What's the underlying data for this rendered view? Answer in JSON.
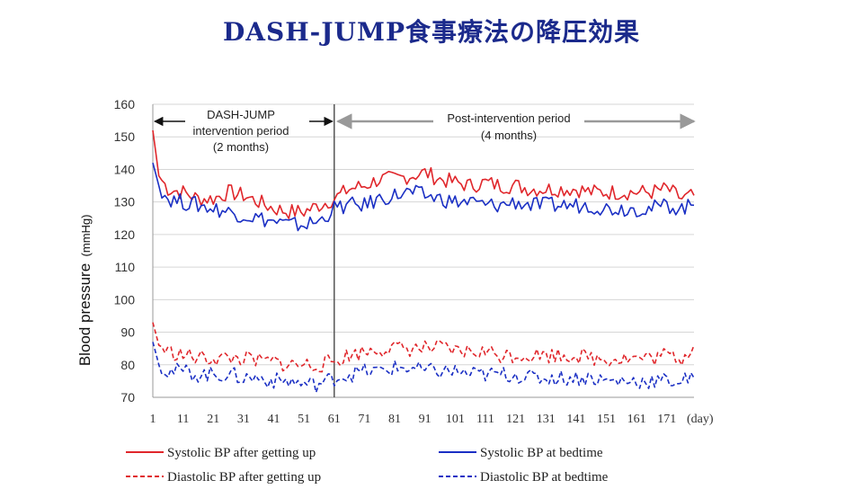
{
  "title": "DASH-JUMP食事療法の降圧効果",
  "chart_data": {
    "type": "line",
    "ylabel": "Blood pressure",
    "ylabel_unit": "(mmHg)",
    "xunit": "(day)",
    "ylim": [
      70,
      160
    ],
    "yticks": [
      70,
      80,
      90,
      100,
      110,
      120,
      130,
      140,
      150,
      160
    ],
    "xlim": [
      1,
      180
    ],
    "xticks": [
      1,
      11,
      21,
      31,
      41,
      51,
      61,
      71,
      81,
      91,
      101,
      111,
      121,
      131,
      141,
      151,
      161,
      171
    ],
    "grid": "horizontal",
    "annotations": [
      {
        "lines": [
          "DASH-JUMP",
          "intervention period",
          "(2 months)"
        ],
        "from_day": 1,
        "to_day": 61
      },
      {
        "lines": [
          "Post-intervention period",
          "(4 months)"
        ],
        "from_day": 61,
        "to_day": 180
      }
    ],
    "divider_day": 61,
    "series": [
      {
        "name": "Systolic BP after getting up",
        "color": "#e0262b",
        "style": "solid",
        "x": [
          1,
          3,
          6,
          11,
          16,
          21,
          26,
          31,
          36,
          41,
          46,
          51,
          56,
          61,
          66,
          71,
          76,
          81,
          86,
          91,
          96,
          101,
          106,
          111,
          116,
          121,
          126,
          131,
          136,
          141,
          146,
          151,
          156,
          161,
          166,
          171,
          176,
          180
        ],
        "values": [
          152,
          138,
          134,
          133,
          131,
          131,
          133,
          132,
          130,
          128,
          127,
          127,
          129,
          131,
          134,
          135,
          137,
          137,
          138,
          139,
          137,
          136,
          135,
          136,
          135,
          135,
          134,
          134,
          134,
          134,
          133,
          133,
          133,
          133,
          133,
          134,
          131,
          132
        ]
      },
      {
        "name": "Systolic BP at bedtime",
        "color": "#1a2fc4",
        "style": "solid",
        "x": [
          1,
          3,
          6,
          11,
          16,
          21,
          26,
          31,
          36,
          41,
          46,
          51,
          56,
          61,
          66,
          71,
          76,
          81,
          86,
          91,
          96,
          101,
          106,
          111,
          116,
          121,
          126,
          131,
          136,
          141,
          146,
          151,
          156,
          161,
          166,
          171,
          176,
          180
        ],
        "values": [
          142,
          135,
          131,
          130,
          129,
          128,
          127,
          126,
          125,
          124,
          123,
          123,
          124,
          128,
          129,
          129,
          131,
          132,
          133,
          132,
          131,
          130,
          130,
          129,
          129,
          130,
          129,
          129,
          129,
          129,
          129,
          128,
          128,
          128,
          128,
          129,
          128,
          129
        ]
      },
      {
        "name": "Diastolic BP after getting up",
        "color": "#e0262b",
        "style": "dashed",
        "x": [
          1,
          3,
          6,
          11,
          16,
          21,
          26,
          31,
          36,
          41,
          46,
          51,
          56,
          61,
          66,
          71,
          76,
          81,
          86,
          91,
          96,
          101,
          106,
          111,
          116,
          121,
          126,
          131,
          136,
          141,
          146,
          151,
          156,
          161,
          166,
          171,
          176,
          180
        ],
        "values": [
          93,
          86,
          84,
          83,
          82,
          82,
          82,
          82,
          81,
          81,
          80,
          80,
          80,
          81,
          83,
          84,
          85,
          85,
          85,
          85,
          85,
          84,
          84,
          84,
          83,
          83,
          83,
          83,
          83,
          83,
          82,
          82,
          82,
          82,
          82,
          83,
          82,
          86
        ]
      },
      {
        "name": "Diastolic BP at bedtime",
        "color": "#1a2fc4",
        "style": "dashed",
        "x": [
          1,
          3,
          6,
          11,
          16,
          21,
          26,
          31,
          36,
          41,
          46,
          51,
          56,
          61,
          66,
          71,
          76,
          81,
          86,
          91,
          96,
          101,
          106,
          111,
          116,
          121,
          126,
          131,
          136,
          141,
          146,
          151,
          156,
          161,
          166,
          171,
          176,
          180
        ],
        "values": [
          87,
          80,
          78,
          78,
          77,
          77,
          77,
          76,
          76,
          75,
          75,
          74,
          74,
          76,
          77,
          78,
          78,
          79,
          79,
          78,
          78,
          78,
          77,
          77,
          77,
          77,
          76,
          76,
          76,
          76,
          76,
          75,
          75,
          75,
          75,
          75,
          75,
          76
        ]
      }
    ]
  }
}
